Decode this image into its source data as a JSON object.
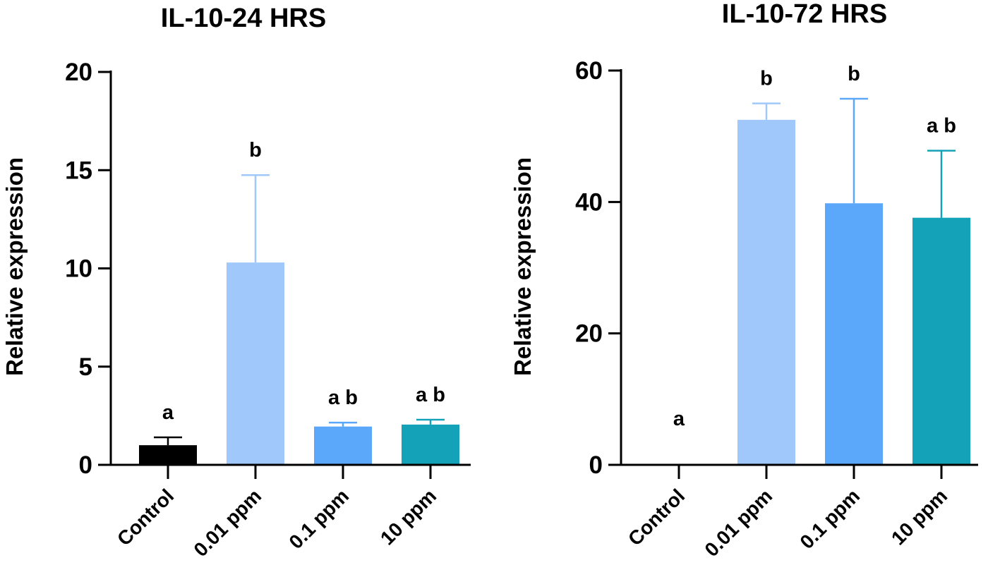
{
  "chart_data": [
    {
      "type": "bar",
      "title": "IL-10-24 HRS",
      "ylabel": "Relative expression",
      "xlabel": "",
      "ylim": [
        0,
        20
      ],
      "yticks": [
        "0",
        "5",
        "10",
        "15",
        "20"
      ],
      "categories": [
        "Control",
        "0.01 ppm",
        "0.1 ppm",
        "10 ppm"
      ],
      "values": [
        1.0,
        10.3,
        1.95,
        2.05
      ],
      "error": [
        0.4,
        4.45,
        0.2,
        0.25
      ],
      "significance": [
        "a",
        "b",
        "ab",
        "ab"
      ],
      "colors": [
        "#000000",
        "#a0c8fb",
        "#5ba8fa",
        "#14a2b8"
      ]
    },
    {
      "type": "bar",
      "title": "IL-10-72 HRS",
      "ylabel": "Relative expression",
      "xlabel": "",
      "ylim": [
        0,
        60
      ],
      "yticks": [
        "0",
        "20",
        "40",
        "60"
      ],
      "categories": [
        "Control",
        "0.01 ppm",
        "0.1 ppm",
        "10 ppm"
      ],
      "values": [
        0.0,
        52.5,
        39.8,
        37.6
      ],
      "error": [
        0.0,
        2.5,
        15.9,
        10.2
      ],
      "significance": [
        "a",
        "b",
        "b",
        "ab"
      ],
      "colors": [
        "#000000",
        "#a0c8fb",
        "#5ba8fa",
        "#14a2b8"
      ]
    }
  ]
}
